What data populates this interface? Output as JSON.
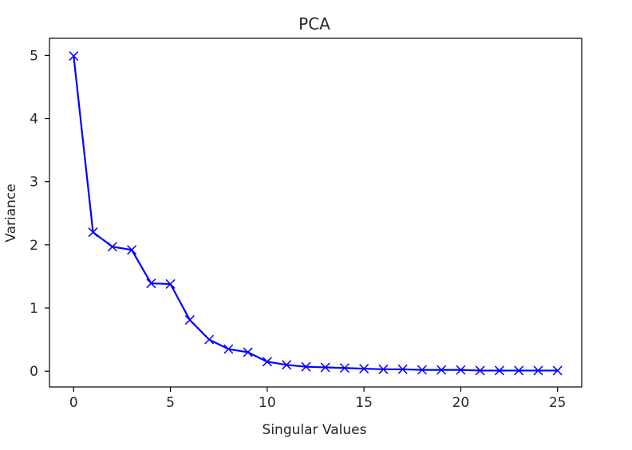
{
  "chart_data": {
    "type": "line",
    "title": "PCA",
    "xlabel": "Singular Values",
    "ylabel": "Variance",
    "xlim": [
      -1.25,
      26.25
    ],
    "ylim": [
      -0.25,
      5.27
    ],
    "xticks": [
      0,
      5,
      10,
      15,
      20,
      25
    ],
    "xtick_labels": [
      "0",
      "5",
      "10",
      "15",
      "20",
      "25"
    ],
    "yticks": [
      0,
      1,
      2,
      3,
      4,
      5
    ],
    "ytick_labels": [
      "0",
      "1",
      "2",
      "3",
      "4",
      "5"
    ],
    "grid": false,
    "legend": false,
    "series": [
      {
        "color": "#0000ff",
        "marker": "x",
        "x": [
          0,
          1,
          2,
          3,
          4,
          5,
          6,
          7,
          8,
          9,
          10,
          11,
          12,
          13,
          14,
          15,
          16,
          17,
          18,
          19,
          20,
          21,
          22,
          23,
          24,
          25
        ],
        "y": [
          4.99,
          2.2,
          1.97,
          1.92,
          1.39,
          1.38,
          0.81,
          0.5,
          0.35,
          0.3,
          0.15,
          0.1,
          0.07,
          0.06,
          0.05,
          0.04,
          0.03,
          0.03,
          0.02,
          0.02,
          0.02,
          0.01,
          0.01,
          0.01,
          0.01,
          0.01
        ]
      }
    ]
  }
}
